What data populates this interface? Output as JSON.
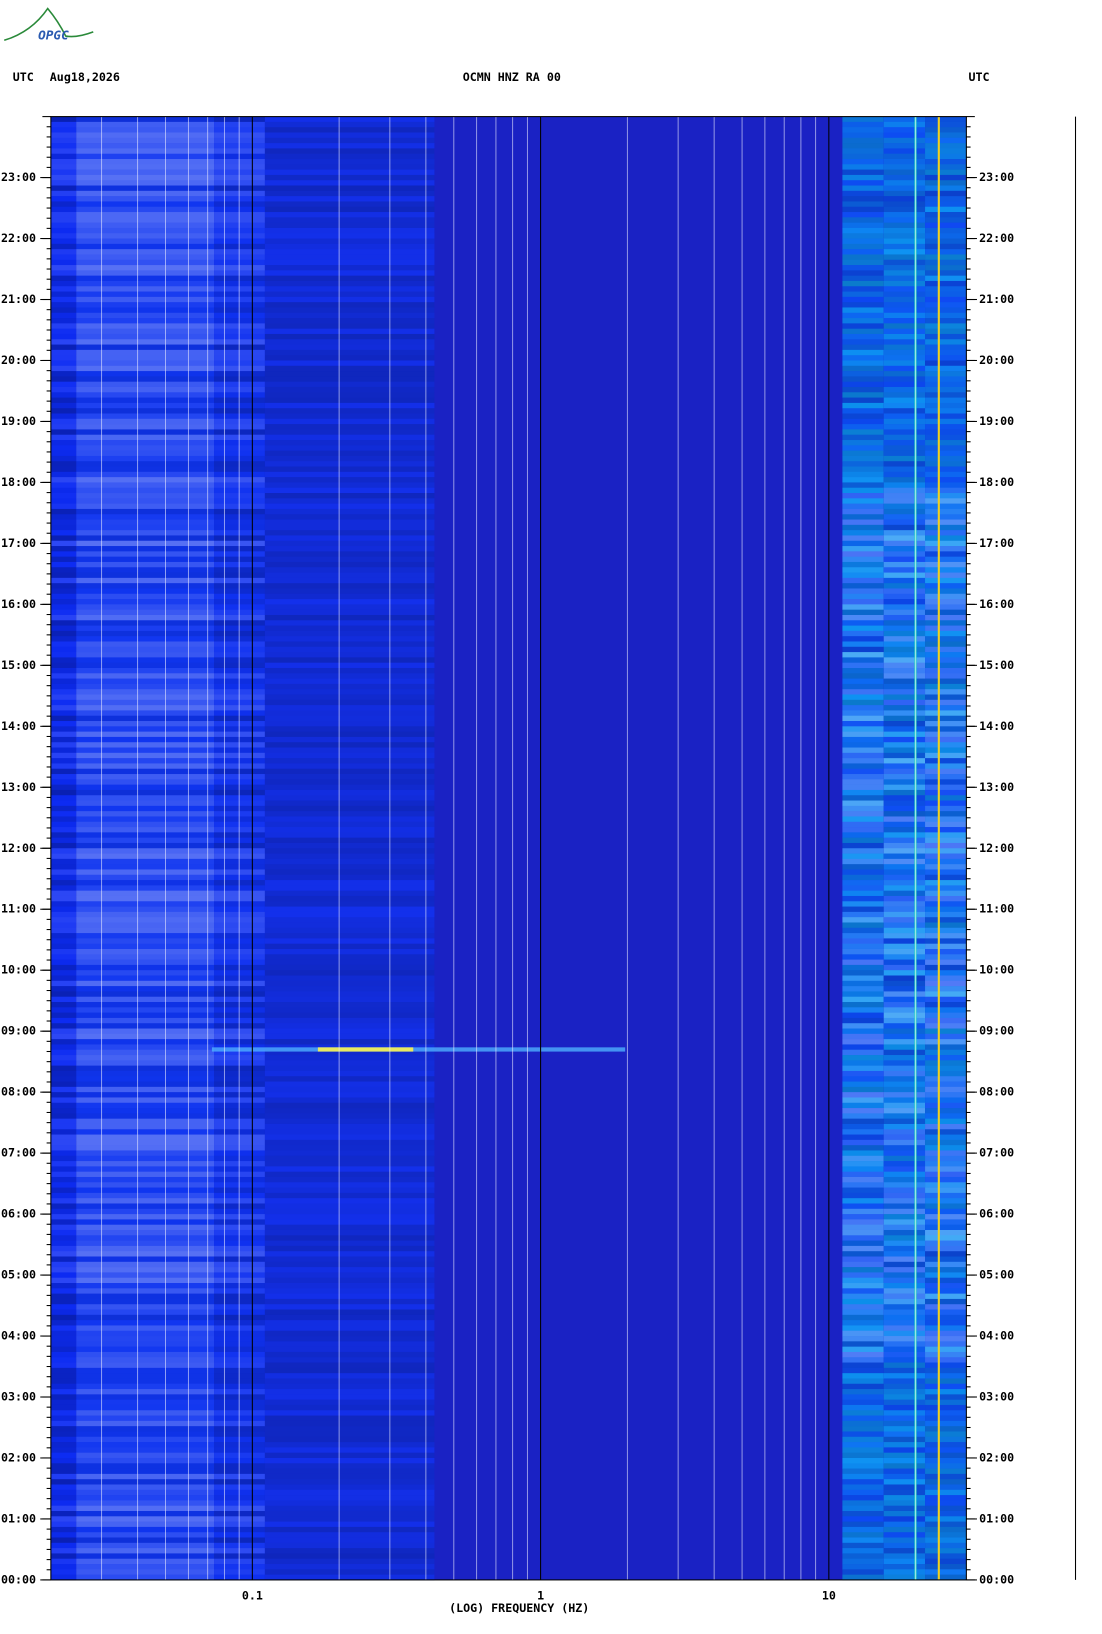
{
  "header": {
    "logo": "OPGC"
  },
  "chart_data": {
    "type": "spectrogram",
    "title": "OCMN HNZ RA 00",
    "date": "Aug18,2026",
    "time_zone_left": "UTC",
    "time_zone_right": "UTC",
    "x_label": "(LOG) FREQUENCY (HZ)",
    "x_log": true,
    "xlim": [
      0.02,
      30
    ],
    "xticks": [
      0.1,
      1,
      10
    ],
    "ylim": [
      0,
      24
    ],
    "yticks": [
      {
        "value": 0,
        "label": "00:00"
      },
      {
        "value": 1,
        "label": "01:00"
      },
      {
        "value": 2,
        "label": "02:00"
      },
      {
        "value": 3,
        "label": "03:00"
      },
      {
        "value": 4,
        "label": "04:00"
      },
      {
        "value": 5,
        "label": "05:00"
      },
      {
        "value": 6,
        "label": "06:00"
      },
      {
        "value": 7,
        "label": "07:00"
      },
      {
        "value": 8,
        "label": "08:00"
      },
      {
        "value": 9,
        "label": "09:00"
      },
      {
        "value": 10,
        "label": "10:00"
      },
      {
        "value": 11,
        "label": "11:00"
      },
      {
        "value": 12,
        "label": "12:00"
      },
      {
        "value": 13,
        "label": "13:00"
      },
      {
        "value": 14,
        "label": "14:00"
      },
      {
        "value": 15,
        "label": "15:00"
      },
      {
        "value": 16,
        "label": "16:00"
      },
      {
        "value": 17,
        "label": "17:00"
      },
      {
        "value": 18,
        "label": "18:00"
      },
      {
        "value": 19,
        "label": "19:00"
      },
      {
        "value": 20,
        "label": "20:00"
      },
      {
        "value": 21,
        "label": "21:00"
      },
      {
        "value": 22,
        "label": "22:00"
      },
      {
        "value": 23,
        "label": "23:00"
      }
    ],
    "grid": true
  }
}
